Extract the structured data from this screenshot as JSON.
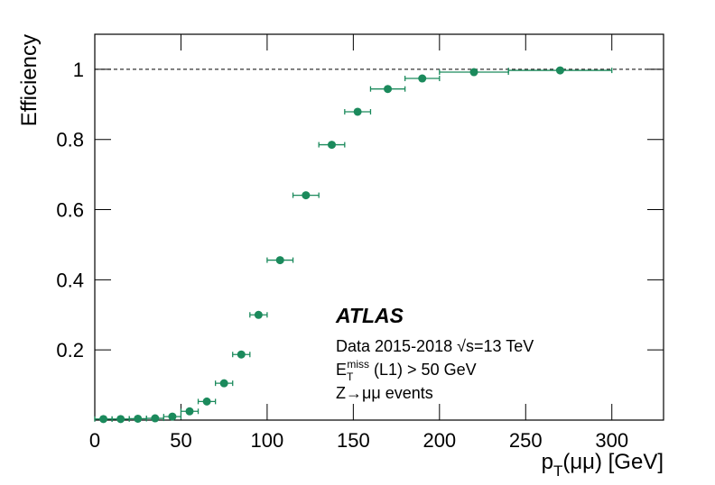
{
  "chart_data": {
    "type": "scatter",
    "x_label": [
      "p",
      "T",
      "(μμ) [GeV]"
    ],
    "y_label": "Efficiency",
    "atlas_label": "ATLAS",
    "annotations": [
      [
        "Data 2015-2018 √s=13 TeV"
      ],
      [
        "E",
        "T",
        "miss",
        " (L1) > 50 GeV"
      ],
      [
        "Z→μμ events"
      ]
    ],
    "color": "#1b8a5c",
    "x": [
      5,
      15,
      25,
      35,
      45,
      55,
      65,
      75,
      85,
      95,
      107.5,
      122.5,
      137.5,
      152.5,
      170,
      190,
      220,
      270
    ],
    "xerr": [
      5,
      5,
      5,
      5,
      5,
      5,
      5,
      5,
      5,
      5,
      7.5,
      7.5,
      7.5,
      7.5,
      10,
      10,
      20,
      30
    ],
    "values": [
      0.003,
      0.003,
      0.004,
      0.005,
      0.01,
      0.025,
      0.053,
      0.105,
      0.187,
      0.3,
      0.456,
      0.641,
      0.785,
      0.879,
      0.944,
      0.974,
      0.992,
      0.997
    ],
    "reference_line": 1,
    "xlim": [
      0,
      330
    ],
    "ylim": [
      0,
      1.1
    ],
    "xticks": [
      0,
      50,
      100,
      150,
      200,
      250,
      300
    ],
    "yticks": [
      0.2,
      0.4,
      0.6,
      0.8,
      1
    ]
  }
}
